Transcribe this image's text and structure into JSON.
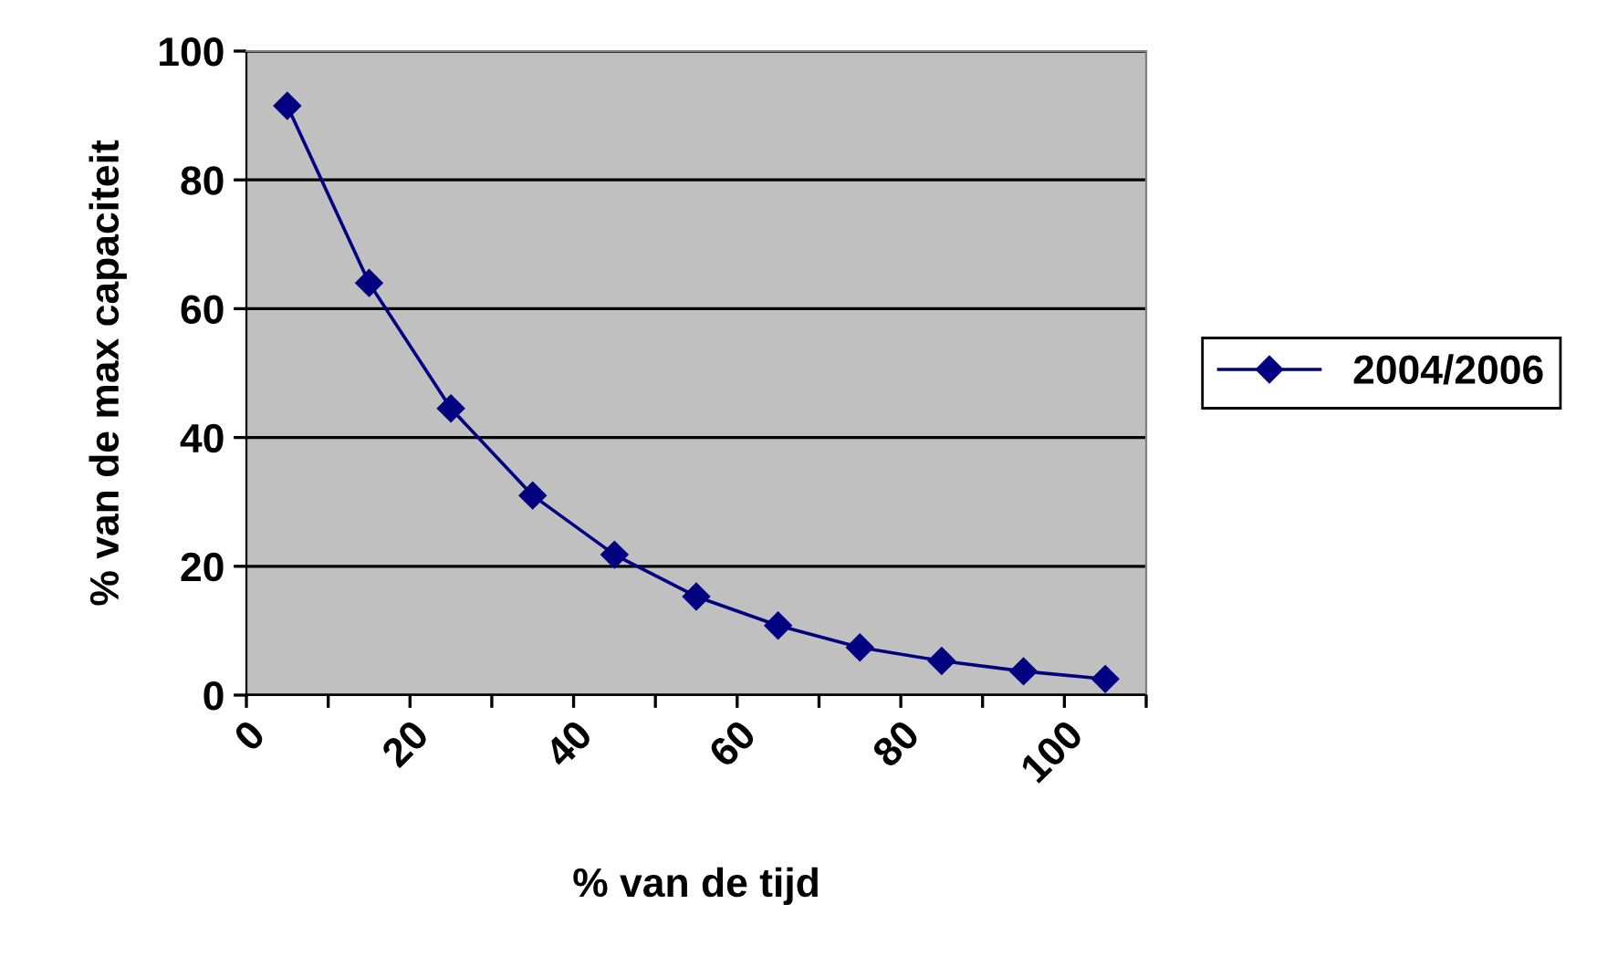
{
  "chart_data": {
    "type": "line",
    "xlabel": "% van de tijd",
    "ylabel": "% van de max capaciteit",
    "x": [
      5,
      15,
      25,
      35,
      45,
      55,
      65,
      75,
      85,
      95,
      105
    ],
    "series": [
      {
        "name": "2004/2006",
        "color": "#000080",
        "values": [
          91.5,
          64,
          44.5,
          31,
          21.8,
          15.3,
          10.8,
          7.4,
          5.3,
          3.7,
          2.5
        ]
      }
    ],
    "xlim": [
      0,
      110
    ],
    "ylim": [
      0,
      100
    ],
    "xticks": [
      0,
      {
        "value": 10,
        "label": null
      },
      20,
      {
        "value": 30,
        "label": null
      },
      40,
      {
        "value": 50,
        "label": null
      },
      60,
      {
        "value": 70,
        "label": null
      },
      80,
      {
        "value": 90,
        "label": null
      },
      100,
      {
        "value": 110,
        "label": null
      }
    ],
    "yticks": [
      0,
      20,
      40,
      60,
      80,
      100
    ],
    "grid": "y",
    "legend": "right",
    "marker": "diamond",
    "line_style": "solid"
  }
}
